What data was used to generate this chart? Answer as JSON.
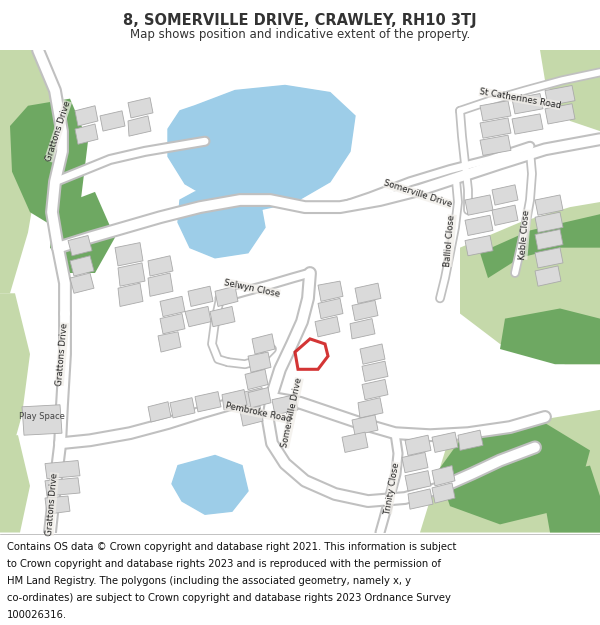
{
  "title": "8, SOMERVILLE DRIVE, CRAWLEY, RH10 3TJ",
  "subtitle": "Map shows position and indicative extent of the property.",
  "footer": "Contains OS data © Crown copyright and database right 2021. This information is subject to Crown copyright and database rights 2023 and is reproduced with the permission of HM Land Registry. The polygons (including the associated geometry, namely x, y co-ordinates) are subject to Crown copyright and database rights 2023 Ordnance Survey 100026316.",
  "bg_color": "#f0ede8",
  "road_color": "#ffffff",
  "road_outline": "#c8c8c8",
  "building_color": "#dadada",
  "building_outline": "#aaaaaa",
  "light_green": "#c5d9aa",
  "dark_green": "#6ea862",
  "water_color": "#9dcde8",
  "highlight_color": "#cc1111",
  "highlight_fill": "#ffffff",
  "text_color": "#333333",
  "footer_color": "#111111",
  "title_fontsize": 10.5,
  "subtitle_fontsize": 8.5,
  "footer_fontsize": 7.2
}
